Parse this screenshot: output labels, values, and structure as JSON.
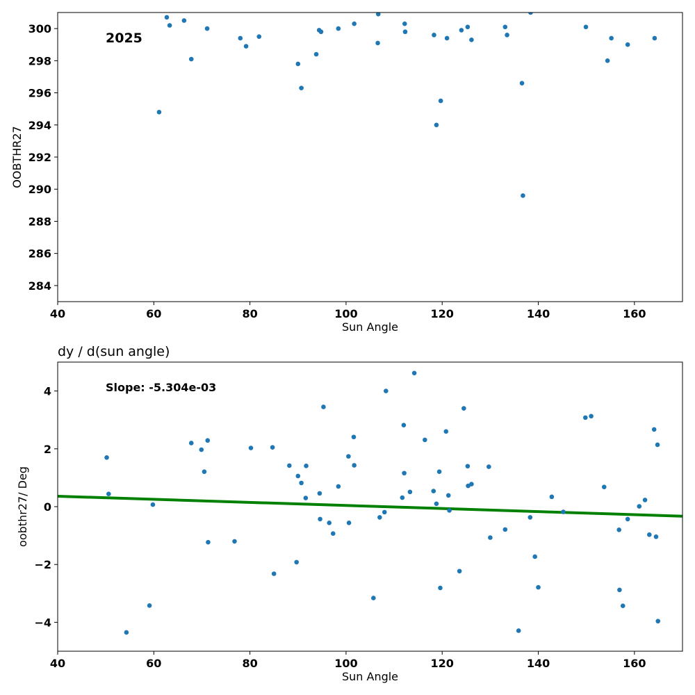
{
  "chart_data": [
    {
      "type": "scatter",
      "title": "",
      "annotation": "2025",
      "xlabel": "Sun Angle",
      "ylabel": "OOBTHR27",
      "xlim": [
        40,
        170
      ],
      "ylim": [
        283,
        301
      ],
      "xticks": [
        40,
        60,
        80,
        100,
        120,
        140,
        160
      ],
      "yticks": [
        284,
        286,
        288,
        290,
        292,
        294,
        296,
        298,
        300
      ],
      "grid": false,
      "point_color": "#1f77b4",
      "points": [
        [
          61.1,
          294.8
        ],
        [
          62.7,
          300.7
        ],
        [
          63.3,
          300.2
        ],
        [
          66.3,
          300.5
        ],
        [
          67.8,
          298.1
        ],
        [
          71.1,
          300.0
        ],
        [
          78.0,
          299.4
        ],
        [
          79.2,
          298.9
        ],
        [
          81.9,
          299.5
        ],
        [
          90.0,
          297.8
        ],
        [
          90.7,
          296.3
        ],
        [
          93.8,
          298.4
        ],
        [
          94.4,
          299.9
        ],
        [
          94.8,
          299.8
        ],
        [
          98.4,
          300.0
        ],
        [
          101.7,
          300.3
        ],
        [
          106.6,
          299.1
        ],
        [
          106.7,
          300.9
        ],
        [
          112.2,
          300.3
        ],
        [
          112.3,
          299.8
        ],
        [
          118.3,
          299.6
        ],
        [
          118.8,
          294.0
        ],
        [
          119.7,
          295.5
        ],
        [
          121.0,
          299.4
        ],
        [
          124.0,
          299.9
        ],
        [
          125.3,
          300.1
        ],
        [
          126.1,
          299.3
        ],
        [
          133.1,
          300.1
        ],
        [
          133.5,
          299.6
        ],
        [
          136.6,
          296.6
        ],
        [
          136.8,
          289.6
        ],
        [
          138.4,
          301.0
        ],
        [
          149.9,
          300.1
        ],
        [
          154.4,
          298.0
        ],
        [
          155.2,
          299.4
        ],
        [
          158.6,
          299.0
        ],
        [
          164.2,
          299.4
        ]
      ]
    },
    {
      "type": "scatter",
      "title": "dy / d(sun angle)",
      "annotation": "Slope: -5.304e-03",
      "xlabel": "Sun Angle",
      "ylabel": "oobthr27/ Deg",
      "xlim": [
        40,
        170
      ],
      "ylim": [
        -5,
        5
      ],
      "xticks": [
        40,
        60,
        80,
        100,
        120,
        140,
        160
      ],
      "yticks": [
        -4,
        -2,
        0,
        2,
        4
      ],
      "grid": false,
      "point_color": "#1f77b4",
      "fit_line": {
        "color": "#008000",
        "x": [
          40,
          170
        ],
        "y": [
          0.36,
          -0.33
        ]
      },
      "points": [
        [
          50.2,
          1.7
        ],
        [
          50.6,
          0.44
        ],
        [
          54.3,
          -4.35
        ],
        [
          59.1,
          -3.42
        ],
        [
          59.8,
          0.07
        ],
        [
          67.8,
          2.2
        ],
        [
          69.9,
          1.97
        ],
        [
          70.5,
          1.21
        ],
        [
          71.2,
          2.29
        ],
        [
          71.3,
          -1.23
        ],
        [
          76.8,
          -1.2
        ],
        [
          80.2,
          2.03
        ],
        [
          84.7,
          2.05
        ],
        [
          85.0,
          -2.32
        ],
        [
          88.2,
          1.42
        ],
        [
          89.7,
          -1.92
        ],
        [
          90.0,
          1.06
        ],
        [
          90.7,
          0.82
        ],
        [
          91.6,
          0.3
        ],
        [
          91.7,
          1.41
        ],
        [
          94.5,
          0.46
        ],
        [
          94.6,
          -0.43
        ],
        [
          95.3,
          3.45
        ],
        [
          96.5,
          -0.56
        ],
        [
          97.3,
          -0.93
        ],
        [
          98.4,
          0.7
        ],
        [
          100.5,
          1.74
        ],
        [
          100.6,
          -0.56
        ],
        [
          101.6,
          2.41
        ],
        [
          101.7,
          1.43
        ],
        [
          105.7,
          -3.16
        ],
        [
          107.0,
          -0.37
        ],
        [
          108.0,
          -0.19
        ],
        [
          108.3,
          4.0
        ],
        [
          111.7,
          0.31
        ],
        [
          112.0,
          2.82
        ],
        [
          112.1,
          1.16
        ],
        [
          113.3,
          0.51
        ],
        [
          114.2,
          4.62
        ],
        [
          116.4,
          2.31
        ],
        [
          118.2,
          0.54
        ],
        [
          118.8,
          0.1
        ],
        [
          119.4,
          1.21
        ],
        [
          119.6,
          -2.81
        ],
        [
          120.8,
          2.6
        ],
        [
          121.3,
          0.39
        ],
        [
          121.5,
          -0.13
        ],
        [
          123.6,
          -2.23
        ],
        [
          124.5,
          3.4
        ],
        [
          125.3,
          1.4
        ],
        [
          125.4,
          0.72
        ],
        [
          126.1,
          0.78
        ],
        [
          129.7,
          1.38
        ],
        [
          130.0,
          -1.07
        ],
        [
          133.1,
          -0.79
        ],
        [
          135.9,
          -4.29
        ],
        [
          138.3,
          -0.37
        ],
        [
          139.3,
          -1.73
        ],
        [
          140.0,
          -2.79
        ],
        [
          142.8,
          0.34
        ],
        [
          145.2,
          -0.18
        ],
        [
          149.8,
          3.08
        ],
        [
          151.0,
          3.13
        ],
        [
          153.7,
          0.68
        ],
        [
          156.8,
          -0.8
        ],
        [
          156.9,
          -2.88
        ],
        [
          157.6,
          -3.43
        ],
        [
          158.6,
          -0.43
        ],
        [
          161.0,
          0.01
        ],
        [
          162.2,
          0.23
        ],
        [
          163.1,
          -0.97
        ],
        [
          164.1,
          2.67
        ],
        [
          164.5,
          -1.04
        ],
        [
          164.8,
          2.14
        ],
        [
          164.9,
          -3.96
        ]
      ]
    }
  ]
}
